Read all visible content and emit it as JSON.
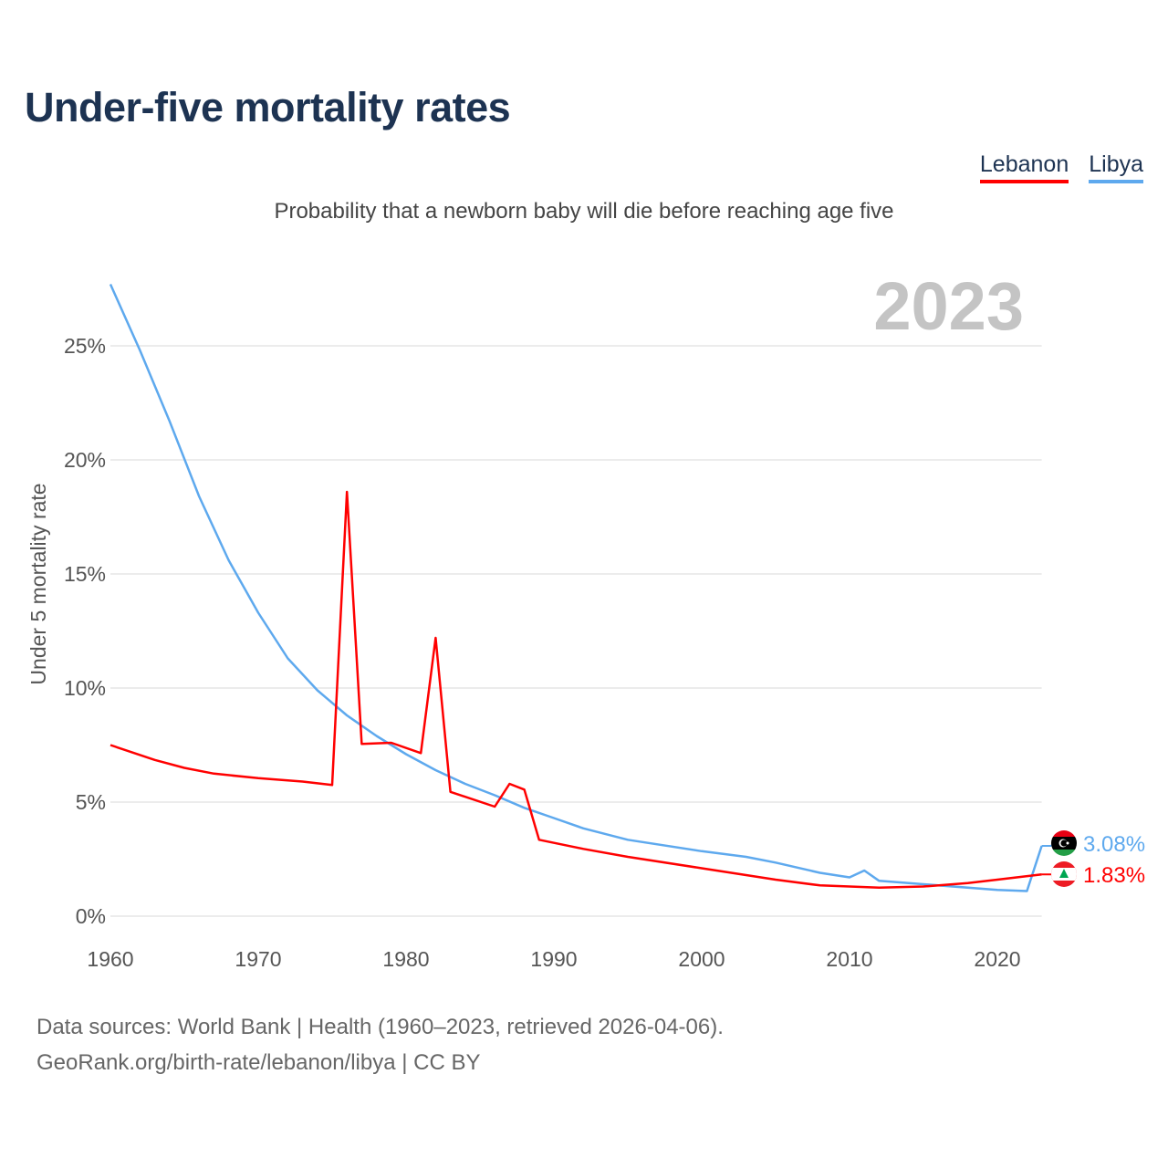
{
  "chart_data": {
    "type": "line",
    "title": "Under-five mortality rates",
    "subtitle": "Probability that a newborn baby will die before reaching age five",
    "ylabel": "Under 5 mortality rate",
    "xlabel": "",
    "year_label": "2023",
    "xlim": [
      1960,
      2023
    ],
    "ylim": [
      0,
      25
    ],
    "x_ticks": [
      "1960",
      "1970",
      "1980",
      "1990",
      "2000",
      "2010",
      "2020"
    ],
    "y_ticks": [
      "0%",
      "5%",
      "10%",
      "15%",
      "20%",
      "25%"
    ],
    "grid": true,
    "legend_position": "top-right",
    "series": [
      {
        "name": "Lebanon",
        "color": "#ff0000",
        "end_label": "1.83%",
        "points": [
          [
            1960,
            7.5
          ],
          [
            1963,
            6.85
          ],
          [
            1965,
            6.5
          ],
          [
            1967,
            6.25
          ],
          [
            1970,
            6.05
          ],
          [
            1973,
            5.9
          ],
          [
            1975,
            5.75
          ],
          [
            1976,
            18.6
          ],
          [
            1977,
            7.55
          ],
          [
            1979,
            7.6
          ],
          [
            1981,
            7.15
          ],
          [
            1982,
            12.2
          ],
          [
            1983,
            5.45
          ],
          [
            1986,
            4.8
          ],
          [
            1987,
            5.8
          ],
          [
            1988,
            5.55
          ],
          [
            1989,
            3.35
          ],
          [
            1992,
            2.95
          ],
          [
            1995,
            2.6
          ],
          [
            2000,
            2.1
          ],
          [
            2005,
            1.6
          ],
          [
            2008,
            1.35
          ],
          [
            2012,
            1.25
          ],
          [
            2015,
            1.3
          ],
          [
            2018,
            1.45
          ],
          [
            2020,
            1.6
          ],
          [
            2023,
            1.83
          ]
        ]
      },
      {
        "name": "Libya",
        "color": "#5ea9ee",
        "end_label": "3.08%",
        "points": [
          [
            1960,
            27.7
          ],
          [
            1962,
            24.8
          ],
          [
            1964,
            21.7
          ],
          [
            1966,
            18.4
          ],
          [
            1968,
            15.6
          ],
          [
            1970,
            13.3
          ],
          [
            1972,
            11.3
          ],
          [
            1974,
            9.9
          ],
          [
            1976,
            8.8
          ],
          [
            1978,
            7.9
          ],
          [
            1980,
            7.1
          ],
          [
            1982,
            6.4
          ],
          [
            1984,
            5.8
          ],
          [
            1986,
            5.3
          ],
          [
            1988,
            4.75
          ],
          [
            1990,
            4.3
          ],
          [
            1992,
            3.85
          ],
          [
            1995,
            3.35
          ],
          [
            2000,
            2.85
          ],
          [
            2003,
            2.6
          ],
          [
            2005,
            2.35
          ],
          [
            2008,
            1.9
          ],
          [
            2010,
            1.7
          ],
          [
            2011,
            2.0
          ],
          [
            2012,
            1.55
          ],
          [
            2015,
            1.4
          ],
          [
            2020,
            1.15
          ],
          [
            2022,
            1.1
          ],
          [
            2023,
            3.08
          ]
        ]
      }
    ]
  },
  "legend": [
    "Lebanon",
    "Libya"
  ],
  "footer": {
    "line1": "Data sources: World Bank | Health (1960–2023, retrieved 2026-04-06).",
    "line2": "GeoRank.org/birth-rate/lebanon/libya | CC BY"
  }
}
